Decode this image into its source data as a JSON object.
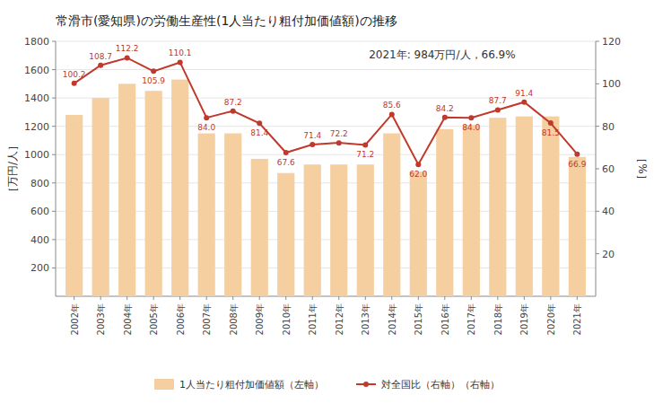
{
  "chart_data": {
    "type": "bar",
    "title": "常滑市(愛知県)の労働生産性(1人当たり粗付加価値額)の推移",
    "categories": [
      "2002年",
      "2003年",
      "2004年",
      "2005年",
      "2006年",
      "2007年",
      "2008年",
      "2009年",
      "2010年",
      "2011年",
      "2012年",
      "2013年",
      "2014年",
      "2015年",
      "2016年",
      "2017年",
      "2018年",
      "2019年",
      "2020年",
      "2021年"
    ],
    "series": [
      {
        "name": "1人当たり粗付加価値額（左軸）",
        "type": "bar",
        "color": "#f5cfa0",
        "values": [
          1280,
          1400,
          1500,
          1450,
          1530,
          1150,
          1150,
          970,
          870,
          930,
          930,
          930,
          1150,
          880,
          1180,
          1210,
          1260,
          1270,
          1270,
          984
        ]
      },
      {
        "name": "対全国比（右軸）（右軸）",
        "type": "line",
        "axis": "y2",
        "color": "#c0392b",
        "marker": "circle",
        "data_labels": true,
        "values": [
          100.2,
          108.7,
          112.2,
          105.9,
          110.1,
          84.0,
          87.2,
          81.4,
          67.6,
          71.4,
          72.2,
          71.2,
          85.6,
          62.0,
          84.2,
          84.0,
          87.7,
          91.4,
          81.5,
          66.9
        ],
        "value_labels": [
          "100.2",
          "108.7",
          "112.2",
          "105.9",
          "110.1",
          "84.0",
          "87.2",
          "81.4",
          "67.6",
          "71.4",
          "72.2",
          "71.2",
          "85.6",
          "62.0",
          "84.2",
          "84.0",
          "87.7",
          "91.4",
          "81.5",
          "66.9"
        ]
      }
    ],
    "ylabel": "［万円/人］",
    "y2label": "［%］",
    "ylim": [
      0,
      1800
    ],
    "yticks": [
      200,
      400,
      600,
      800,
      1000,
      1200,
      1400,
      1600,
      1800
    ],
    "y2lim": [
      0,
      120
    ],
    "y2ticks": [
      20,
      40,
      60,
      80,
      100,
      120
    ],
    "annotation": "2021年: 984万円/人，66.9%",
    "grid": true,
    "legend": "bottom"
  }
}
